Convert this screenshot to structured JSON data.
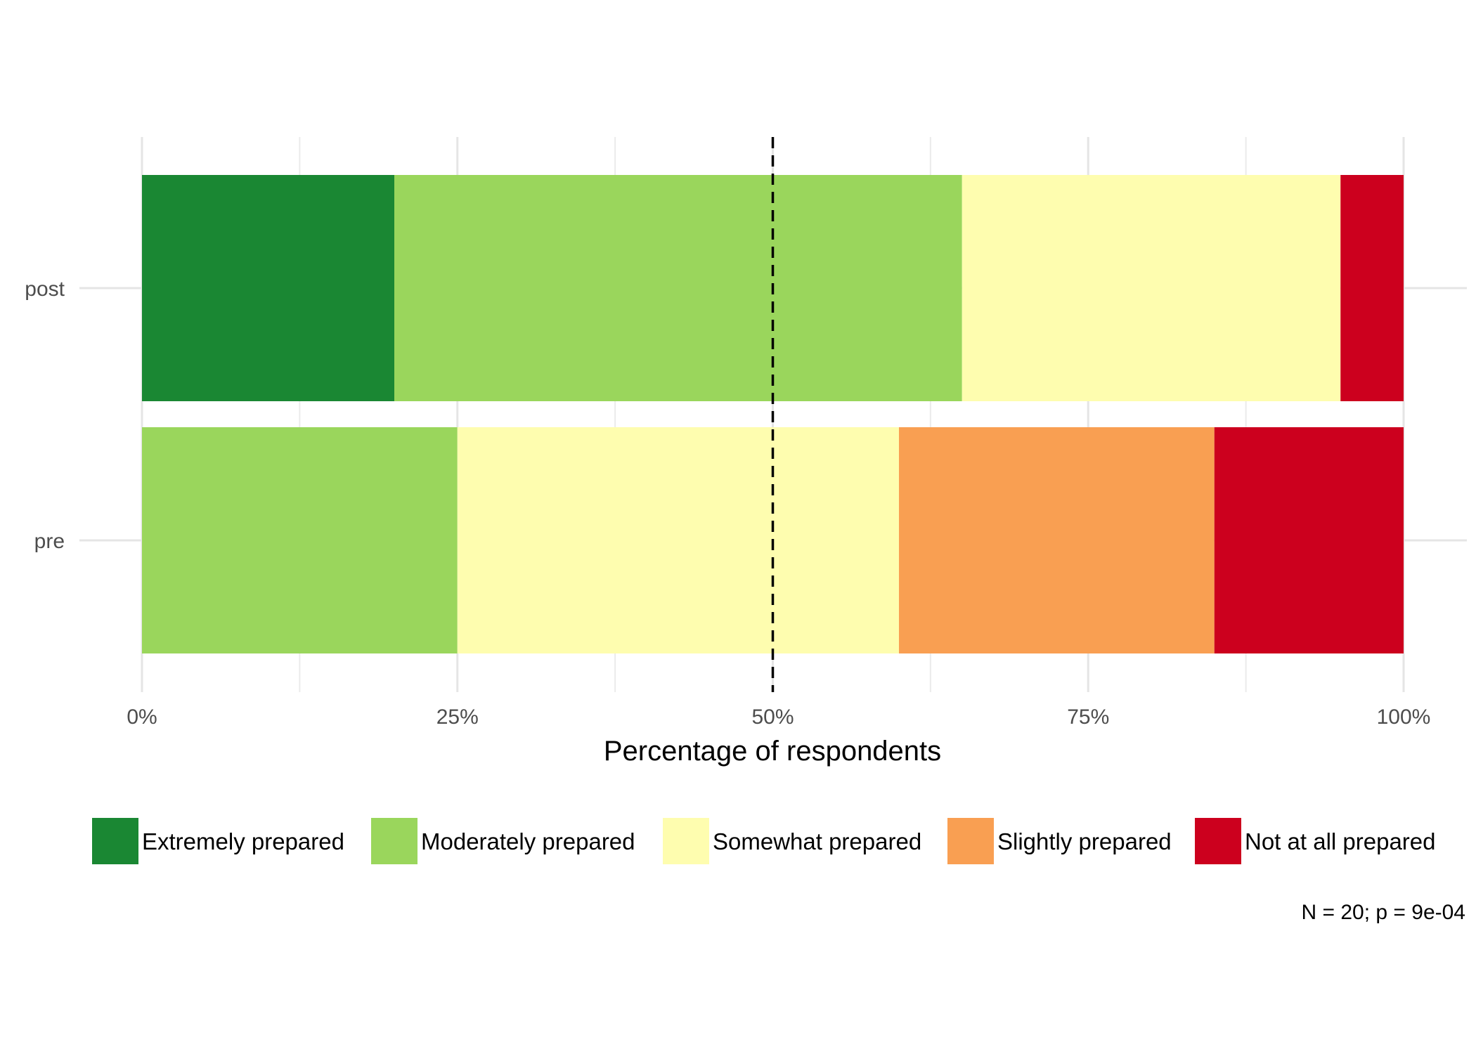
{
  "chart_data": {
    "type": "bar",
    "orientation": "horizontal",
    "stacked": "percent",
    "categories": [
      "post",
      "pre"
    ],
    "series": [
      {
        "name": "Extremely prepared",
        "color": "#1a8733",
        "values": [
          20,
          0
        ]
      },
      {
        "name": "Moderately prepared",
        "color": "#9ad65c",
        "values": [
          45,
          25
        ]
      },
      {
        "name": "Somewhat prepared",
        "color": "#fefdaf",
        "values": [
          30,
          35
        ]
      },
      {
        "name": "Slightly prepared",
        "color": "#f99f52",
        "values": [
          0,
          25
        ]
      },
      {
        "name": "Not at all prepared",
        "color": "#cc001e",
        "values": [
          5,
          15
        ]
      }
    ],
    "xlabel": "Percentage of respondents",
    "ylabel": "",
    "xlim": [
      0,
      100
    ],
    "x_ticks": [
      0,
      25,
      50,
      75,
      100
    ],
    "x_tick_labels": [
      "0%",
      "25%",
      "50%",
      "75%",
      "100%"
    ],
    "reference_line": {
      "x": 50,
      "style": "dashed",
      "color": "#000000"
    },
    "grid": true,
    "legend_position": "bottom",
    "caption": "N = 20; p = 9e-04"
  }
}
